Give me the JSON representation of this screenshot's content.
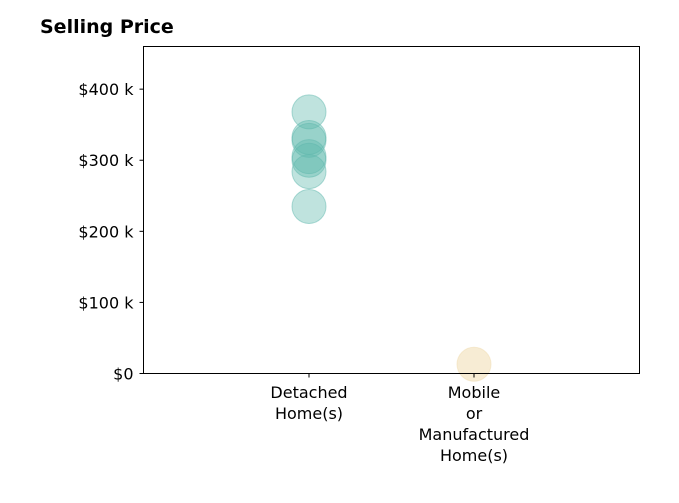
{
  "chart_data": {
    "type": "scatter",
    "title": "Selling Price",
    "xlabel": "",
    "ylabel": "",
    "categories": [
      [
        "Detached",
        "Home(s)"
      ],
      [
        "Mobile",
        "or",
        "Manufactured",
        "Home(s)"
      ]
    ],
    "ylim": [
      0,
      460000
    ],
    "y_ticks": [
      {
        "value": 0,
        "label": "$0"
      },
      {
        "value": 100000,
        "label": "$100 k"
      },
      {
        "value": 200000,
        "label": "$200 k"
      },
      {
        "value": 300000,
        "label": "$300 k"
      },
      {
        "value": 400000,
        "label": "$400 k"
      }
    ],
    "grid": false,
    "series": [
      {
        "category_index": 0,
        "color": "#5fb8ad",
        "opacity": 0.4,
        "values": [
          368000,
          332000,
          328000,
          305000,
          300000,
          284000,
          235000
        ]
      },
      {
        "category_index": 1,
        "color": "#f0dcb0",
        "opacity": 0.55,
        "values": [
          13000
        ]
      }
    ]
  }
}
